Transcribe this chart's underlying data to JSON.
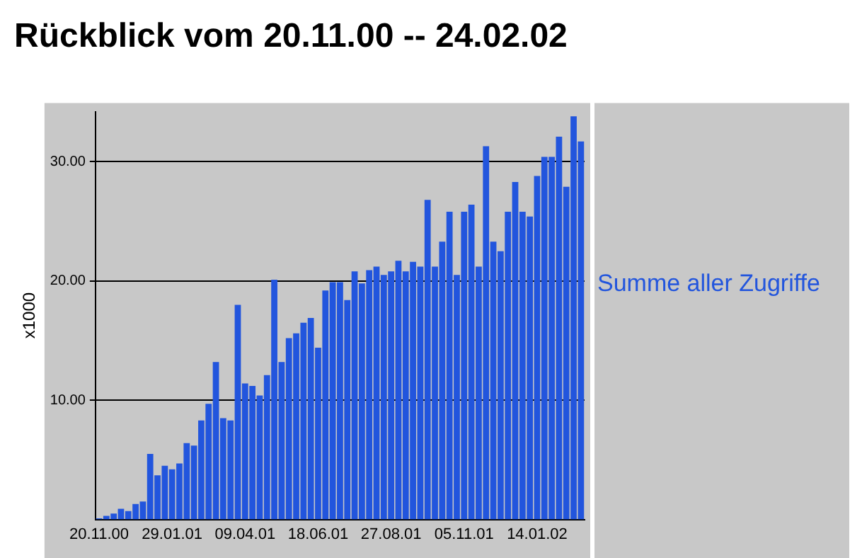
{
  "chart_data": {
    "type": "bar",
    "title": "Rückblick vom 20.11.00 -- 24.02.02",
    "ylabel": "x1000",
    "categories": [
      "20.11.00",
      null,
      null,
      null,
      null,
      null,
      null,
      null,
      null,
      null,
      "29.01.01",
      null,
      null,
      null,
      null,
      null,
      null,
      null,
      null,
      null,
      "09.04.01",
      null,
      null,
      null,
      null,
      null,
      null,
      null,
      null,
      null,
      "18.06.01",
      null,
      null,
      null,
      null,
      null,
      null,
      null,
      null,
      null,
      "27.08.01",
      null,
      null,
      null,
      null,
      null,
      null,
      null,
      null,
      null,
      "05.11.01",
      null,
      null,
      null,
      null,
      null,
      null,
      null,
      null,
      null,
      "14.01.02",
      null,
      null,
      null,
      null,
      null,
      null
    ],
    "series": [
      {
        "name": "Summe aller Zugriffe",
        "color": "#2255dd",
        "values": [
          0.1,
          0.3,
          0.5,
          0.9,
          0.7,
          1.3,
          1.5,
          5.5,
          3.7,
          4.5,
          4.2,
          4.7,
          6.4,
          6.2,
          8.3,
          9.7,
          13.2,
          8.5,
          8.3,
          18.0,
          11.4,
          11.2,
          10.4,
          12.1,
          20.1,
          13.2,
          15.2,
          15.6,
          16.5,
          16.9,
          14.4,
          19.2,
          19.9,
          19.9,
          18.4,
          20.8,
          19.8,
          20.9,
          21.2,
          20.5,
          20.8,
          21.7,
          20.8,
          21.6,
          21.2,
          26.8,
          21.2,
          23.3,
          25.8,
          20.5,
          25.8,
          26.4,
          21.2,
          31.3,
          23.3,
          22.5,
          25.8,
          28.3,
          25.8,
          25.4,
          28.8,
          30.4,
          30.4,
          32.1,
          27.9,
          33.8,
          31.7
        ]
      }
    ],
    "ylim": [
      0,
      34.2
    ],
    "yticks": [
      {
        "value": 10,
        "label": "10.00"
      },
      {
        "value": 20,
        "label": "20.00"
      },
      {
        "value": 30,
        "label": "30.00"
      }
    ],
    "grid": "y",
    "legend": "right"
  }
}
